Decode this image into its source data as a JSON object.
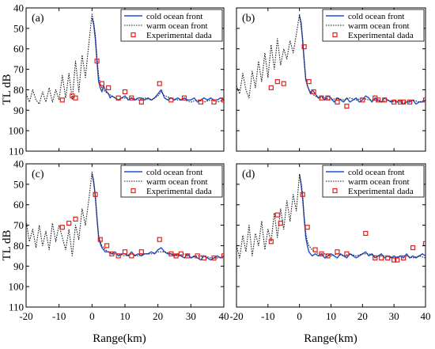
{
  "figure": {
    "ylabel": "TL dB",
    "xlabel": "Range(km)",
    "legend_labels": [
      "cold ocean front",
      "warm ocean front",
      "Experimental dada"
    ]
  },
  "colors": {
    "cold": "#1f4fd0",
    "warm": "#222222",
    "experimental": "#e3201b"
  },
  "chart_data": [
    {
      "panel": "(a)",
      "type": "line",
      "xlim": [
        -20,
        40
      ],
      "ylim": [
        40,
        110
      ],
      "y_inverted": true,
      "xticks": [
        -20,
        -10,
        0,
        10,
        20,
        30,
        40
      ],
      "yticks": [
        40,
        50,
        60,
        70,
        80,
        90,
        100,
        110
      ],
      "grid": false,
      "legend_position": "top-right",
      "series": [
        {
          "name": "cold ocean front",
          "style": "solid",
          "x": [
            0,
            0.5,
            1,
            1.5,
            2,
            2.5,
            3,
            3.5,
            4,
            4.5,
            5,
            5.5,
            6,
            7,
            8,
            9,
            10,
            11,
            12,
            13,
            14,
            15,
            16,
            17,
            18,
            19,
            20,
            21,
            22,
            23,
            24,
            25,
            26,
            27,
            28,
            29,
            30,
            31,
            32,
            33,
            34,
            35,
            36,
            37,
            38,
            39,
            40
          ],
          "y": [
            45,
            48,
            55,
            66,
            76,
            79,
            81,
            78,
            80,
            81,
            82,
            84,
            83,
            84,
            85,
            84,
            83,
            85,
            84,
            85,
            84,
            84,
            85,
            84,
            85,
            84,
            82,
            80,
            84,
            85,
            84,
            85,
            84,
            85,
            84,
            85,
            85,
            84,
            86,
            85,
            84,
            85,
            84,
            85,
            85,
            84,
            85
          ]
        },
        {
          "name": "warm ocean front",
          "style": "dotted",
          "x": [
            -20,
            -19,
            -18,
            -17,
            -16,
            -15,
            -14,
            -13,
            -12,
            -11,
            -10,
            -9,
            -8,
            -7,
            -6,
            -5,
            -4,
            -3,
            -2,
            -1,
            0,
            0.5,
            1,
            1.5,
            2,
            2.5,
            3,
            3.5,
            4,
            5,
            6,
            7,
            8,
            9,
            10,
            12,
            14,
            16,
            18,
            20,
            21,
            22,
            24,
            26,
            28,
            30,
            32,
            34,
            36,
            38,
            40
          ],
          "y": [
            82,
            86,
            80,
            85,
            87,
            81,
            86,
            79,
            86,
            80,
            85,
            73,
            84,
            72,
            85,
            66,
            81,
            63,
            74,
            58,
            43,
            47,
            53,
            64,
            73,
            77,
            79,
            80,
            81,
            82,
            83,
            84,
            85,
            84,
            84,
            84,
            85,
            84,
            85,
            83,
            81,
            83,
            84,
            85,
            85,
            86,
            85,
            86,
            85,
            86,
            85
          ]
        },
        {
          "name": "Experimental dada",
          "style": "markers",
          "x": [
            -9,
            -6,
            -5,
            1.5,
            3,
            5,
            8,
            10,
            12,
            15,
            20.5,
            24,
            28,
            33,
            37,
            40
          ],
          "y": [
            85,
            83,
            84,
            66,
            77,
            79,
            84,
            81,
            84,
            86,
            77,
            85,
            84,
            86,
            86,
            85
          ]
        }
      ]
    },
    {
      "panel": "(b)",
      "type": "line",
      "xlim": [
        -20,
        40
      ],
      "ylim": [
        40,
        110
      ],
      "y_inverted": true,
      "xticks": [
        -20,
        -10,
        0,
        10,
        20,
        30,
        40
      ],
      "yticks": [
        40,
        50,
        60,
        70,
        80,
        90,
        100,
        110
      ],
      "grid": false,
      "legend_position": "top-right",
      "series": [
        {
          "name": "cold ocean front",
          "style": "solid",
          "x": [
            0,
            0.5,
            1,
            1.5,
            2,
            2.5,
            3,
            3.5,
            4,
            5,
            6,
            7,
            8,
            9,
            10,
            11,
            12,
            13,
            14,
            15,
            16,
            17,
            18,
            19,
            20,
            21,
            22,
            23,
            24,
            25,
            26,
            27,
            28,
            29,
            30,
            31,
            32,
            33,
            34,
            35,
            36,
            37,
            38,
            39,
            40
          ],
          "y": [
            44,
            47,
            56,
            66,
            75,
            78,
            80,
            82,
            80,
            82,
            84,
            83,
            85,
            83,
            84,
            86,
            84,
            85,
            86,
            84,
            86,
            85,
            84,
            86,
            85,
            83,
            84,
            86,
            84,
            85,
            86,
            84,
            85,
            86,
            85,
            86,
            85,
            87,
            86,
            86,
            85,
            87,
            86,
            86,
            85
          ]
        },
        {
          "name": "warm ocean front",
          "style": "dotted",
          "x": [
            -20,
            -19,
            -18,
            -17,
            -16,
            -15,
            -14,
            -13,
            -12,
            -11,
            -10,
            -9,
            -8,
            -7,
            -6,
            -5,
            -4,
            -3,
            -2,
            -1,
            0,
            0.5,
            1,
            1.5,
            2,
            2.5,
            3,
            4,
            5,
            6,
            8,
            10,
            12,
            14,
            16,
            18,
            20,
            22,
            24,
            26,
            28,
            30,
            32,
            34,
            36,
            38,
            40
          ],
          "y": [
            78,
            82,
            72,
            80,
            84,
            71,
            79,
            66,
            76,
            62,
            74,
            58,
            70,
            55,
            68,
            60,
            65,
            56,
            62,
            53,
            43,
            49,
            55,
            66,
            75,
            78,
            80,
            82,
            83,
            84,
            84,
            85,
            84,
            85,
            84,
            85,
            84,
            85,
            85,
            86,
            85,
            86,
            86,
            86,
            85,
            86,
            85
          ]
        },
        {
          "name": "Experimental dada",
          "style": "markers",
          "x": [
            -9,
            -7,
            -5,
            1.5,
            3,
            4.5,
            7,
            9,
            12,
            15,
            20,
            24,
            25,
            27,
            30,
            32,
            33,
            35,
            40
          ],
          "y": [
            79,
            76,
            77,
            59,
            76,
            81,
            84,
            84,
            86,
            88,
            85,
            84,
            85,
            85,
            86,
            86,
            86,
            86,
            85
          ]
        }
      ]
    },
    {
      "panel": "(c)",
      "type": "line",
      "xlim": [
        -20,
        40
      ],
      "ylim": [
        40,
        110
      ],
      "y_inverted": true,
      "xticks": [
        -20,
        -10,
        0,
        10,
        20,
        30,
        40
      ],
      "yticks": [
        40,
        50,
        60,
        70,
        80,
        90,
        100,
        110
      ],
      "grid": false,
      "legend_position": "top-right",
      "series": [
        {
          "name": "cold ocean front",
          "style": "solid",
          "x": [
            0,
            0.5,
            1,
            1.5,
            2,
            2.5,
            3,
            3.5,
            4,
            5,
            6,
            7,
            8,
            9,
            10,
            11,
            12,
            13,
            14,
            15,
            16,
            17,
            18,
            19,
            20,
            21,
            22,
            23,
            24,
            25,
            26,
            27,
            28,
            29,
            30,
            31,
            32,
            33,
            34,
            35,
            36,
            37,
            38,
            39,
            40
          ],
          "y": [
            45,
            49,
            56,
            66,
            76,
            79,
            81,
            82,
            83,
            83,
            84,
            83,
            85,
            84,
            84,
            85,
            83,
            85,
            84,
            85,
            84,
            84,
            83,
            84,
            82,
            81,
            83,
            84,
            84,
            85,
            84,
            85,
            86,
            84,
            86,
            85,
            86,
            87,
            85,
            86,
            87,
            86,
            85,
            86,
            85
          ]
        },
        {
          "name": "warm ocean front",
          "style": "dotted",
          "x": [
            -20,
            -19,
            -18,
            -17,
            -16,
            -15,
            -14,
            -13,
            -12,
            -11,
            -10,
            -9,
            -8,
            -7,
            -6,
            -5,
            -4,
            -3,
            -2,
            -1,
            0,
            0.5,
            1,
            1.5,
            2,
            2.5,
            3,
            4,
            5,
            6,
            8,
            10,
            12,
            14,
            16,
            18,
            20,
            22,
            24,
            26,
            28,
            30,
            32,
            34,
            36,
            38,
            40
          ],
          "y": [
            68,
            78,
            72,
            81,
            70,
            80,
            73,
            82,
            69,
            78,
            70,
            76,
            82,
            72,
            85,
            70,
            77,
            62,
            70,
            58,
            44,
            48,
            55,
            67,
            75,
            78,
            80,
            82,
            83,
            84,
            84,
            85,
            84,
            85,
            84,
            84,
            83,
            83,
            84,
            85,
            84,
            86,
            85,
            85,
            86,
            86,
            85
          ]
        },
        {
          "name": "Experimental dada",
          "style": "markers",
          "x": [
            -9,
            -7,
            -5,
            1,
            2.5,
            4.5,
            6,
            8,
            10,
            12,
            15,
            20.5,
            24,
            25.5,
            27,
            29,
            32,
            34,
            37,
            40
          ],
          "y": [
            71,
            69,
            67,
            55,
            77,
            80,
            84,
            85,
            83,
            85,
            83,
            77,
            84,
            85,
            84,
            85,
            85,
            86,
            86,
            85
          ]
        }
      ]
    },
    {
      "panel": "(d)",
      "type": "line",
      "xlim": [
        -20,
        40
      ],
      "ylim": [
        40,
        110
      ],
      "y_inverted": true,
      "xticks": [
        -20,
        -10,
        0,
        10,
        20,
        30,
        40
      ],
      "yticks": [
        40,
        50,
        60,
        70,
        80,
        90,
        100,
        110
      ],
      "grid": false,
      "legend_position": "top-right",
      "series": [
        {
          "name": "cold ocean front",
          "style": "solid",
          "x": [
            0,
            0.5,
            1,
            1.5,
            2,
            2.5,
            3,
            3.5,
            4,
            5,
            6,
            7,
            8,
            9,
            10,
            11,
            12,
            13,
            14,
            15,
            16,
            17,
            18,
            19,
            20,
            21,
            22,
            23,
            24,
            25,
            26,
            27,
            28,
            29,
            30,
            31,
            32,
            33,
            34,
            35,
            36,
            37,
            38,
            39,
            40
          ],
          "y": [
            45,
            50,
            57,
            67,
            76,
            80,
            83,
            84,
            85,
            84,
            85,
            84,
            86,
            85,
            84,
            85,
            86,
            84,
            85,
            86,
            84,
            85,
            86,
            85,
            84,
            83,
            85,
            84,
            86,
            85,
            84,
            86,
            85,
            86,
            85,
            86,
            85,
            86,
            84,
            86,
            85,
            86,
            85,
            84,
            85
          ]
        },
        {
          "name": "warm ocean front",
          "style": "dotted",
          "x": [
            -20,
            -19,
            -18,
            -17,
            -16,
            -15,
            -14,
            -13,
            -12,
            -11,
            -10,
            -9,
            -8,
            -7,
            -6,
            -5,
            -4,
            -3,
            -2,
            -1,
            0,
            0.5,
            1,
            1.5,
            2,
            2.5,
            3,
            4,
            5,
            6,
            8,
            10,
            12,
            14,
            16,
            18,
            20,
            22,
            24,
            26,
            28,
            30,
            32,
            34,
            36,
            38,
            40
          ],
          "y": [
            80,
            86,
            75,
            83,
            70,
            85,
            74,
            80,
            68,
            82,
            72,
            78,
            64,
            76,
            62,
            72,
            58,
            68,
            55,
            63,
            45,
            49,
            55,
            66,
            74,
            78,
            80,
            82,
            83,
            84,
            84,
            85,
            84,
            85,
            84,
            85,
            84,
            84,
            85,
            85,
            85,
            86,
            85,
            85,
            86,
            85,
            86
          ]
        },
        {
          "name": "Experimental dada",
          "style": "markers",
          "x": [
            -9,
            -7,
            -6,
            1,
            2.5,
            5,
            7,
            9,
            12,
            15,
            21,
            24,
            26,
            28,
            30,
            31,
            33,
            36,
            40
          ],
          "y": [
            78,
            65,
            69,
            55,
            71,
            82,
            84,
            85,
            83,
            84,
            74,
            86,
            86,
            86,
            87,
            87,
            86,
            81,
            79
          ]
        }
      ]
    }
  ]
}
